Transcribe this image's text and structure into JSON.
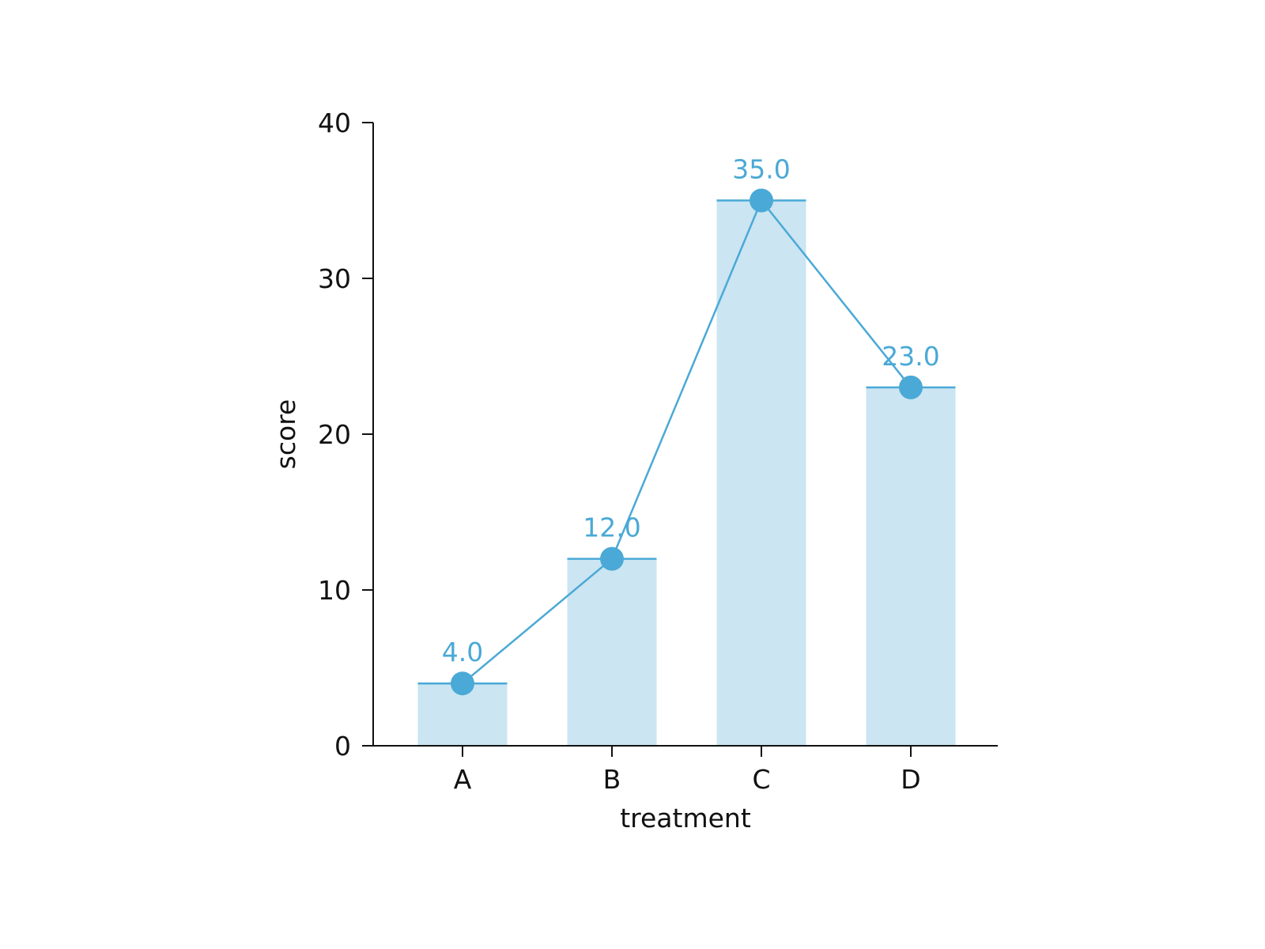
{
  "chart_data": {
    "type": "bar",
    "title": "",
    "xlabel": "treatment",
    "ylabel": "score",
    "categories": [
      "A",
      "B",
      "C",
      "D"
    ],
    "values": [
      4.0,
      12.0,
      35.0,
      23.0
    ],
    "data_labels": [
      "4.0",
      "12.0",
      "35.0",
      "23.0"
    ],
    "overlay": "line-with-markers",
    "ylim": [
      0,
      40
    ],
    "yticks": [
      0,
      10,
      20,
      30,
      40
    ],
    "grid": false,
    "legend": "none",
    "colors": {
      "bar_fill": "#cbe5f2",
      "accent": "#4aa9d6",
      "axis": "#111111"
    }
  }
}
